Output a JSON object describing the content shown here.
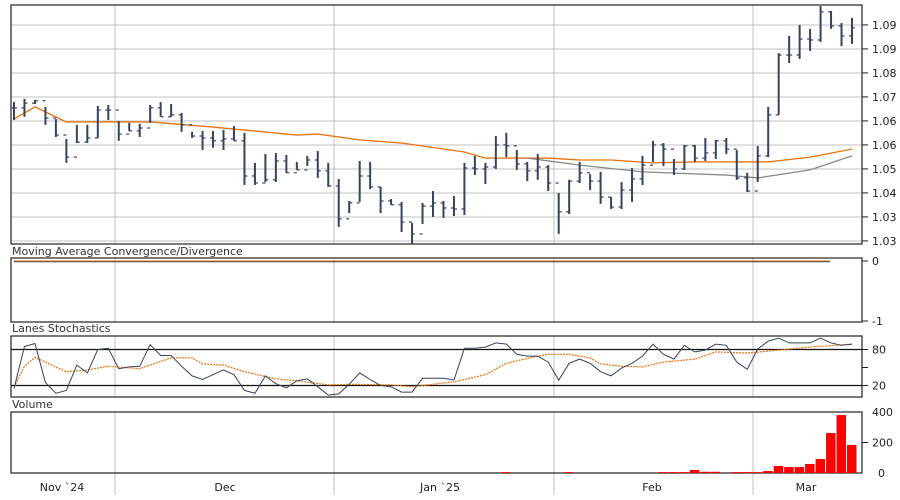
{
  "chart_data": [
    {
      "type": "ohlc",
      "panel": "price",
      "y_ticks": [
        {
          "value": 1.095,
          "label": "1.09"
        },
        {
          "value": 1.0875,
          "label": "1.09"
        },
        {
          "value": 1.08,
          "label": "1.08"
        },
        {
          "value": 1.0725,
          "label": "1.07"
        },
        {
          "value": 1.065,
          "label": "1.06"
        },
        {
          "value": 1.0575,
          "label": "1.06"
        },
        {
          "value": 1.05,
          "label": "1.05"
        },
        {
          "value": 1.0425,
          "label": "1.04"
        },
        {
          "value": 1.035,
          "label": "1.03"
        },
        {
          "value": 1.0275,
          "label": "1.03"
        }
      ],
      "ylim": [
        1.0266,
        1.1013
      ],
      "grid": true,
      "bars_hlc": [
        [
          1.0709,
          1.0653,
          1.0691
        ],
        [
          1.0719,
          1.0663,
          1.0706
        ],
        [
          1.0716,
          1.0703,
          1.0713
        ],
        [
          1.0694,
          1.0638,
          1.0659
        ],
        [
          1.0656,
          1.06,
          1.0606
        ],
        [
          1.0594,
          1.0519,
          1.0537
        ],
        [
          1.0638,
          1.0581,
          1.0584
        ],
        [
          1.0638,
          1.0581,
          1.0597
        ],
        [
          1.0697,
          1.0597,
          1.0684
        ],
        [
          1.07,
          1.0653,
          1.0684
        ],
        [
          1.065,
          1.0588,
          1.0609
        ],
        [
          1.0644,
          1.0619,
          1.0619
        ],
        [
          1.0641,
          1.06,
          1.0628
        ],
        [
          1.07,
          1.0644,
          1.0691
        ],
        [
          1.0709,
          1.0663,
          1.0663
        ],
        [
          1.0703,
          1.0663,
          1.0669
        ],
        [
          1.0675,
          1.0616,
          1.0638
        ],
        [
          1.0616,
          1.0597,
          1.0603
        ],
        [
          1.0619,
          1.0559,
          1.0597
        ],
        [
          1.0619,
          1.0566,
          1.0588
        ],
        [
          1.0622,
          1.0559,
          1.0594
        ],
        [
          1.0634,
          1.0588,
          1.0588
        ],
        [
          1.0613,
          1.045,
          1.0478
        ],
        [
          1.0519,
          1.045,
          1.0456
        ],
        [
          1.0547,
          1.0459,
          1.0466
        ],
        [
          1.055,
          1.0459,
          1.0525
        ],
        [
          1.0544,
          1.0488,
          1.0488
        ],
        [
          1.0522,
          1.0497,
          1.0497
        ],
        [
          1.0541,
          1.0509,
          1.0528
        ],
        [
          1.0556,
          1.0472,
          1.0494
        ],
        [
          1.0519,
          1.0444,
          1.0447
        ],
        [
          1.0469,
          1.0319,
          1.0344
        ],
        [
          1.04,
          1.0362,
          1.0394
        ],
        [
          1.0525,
          1.0397,
          1.0478
        ],
        [
          1.0522,
          1.0437,
          1.0444
        ],
        [
          1.0444,
          1.0362,
          1.04
        ],
        [
          1.0406,
          1.0388,
          1.0388
        ],
        [
          1.0397,
          1.0303,
          1.0334
        ],
        [
          1.0331,
          1.0266,
          1.0297
        ],
        [
          1.0394,
          1.0328,
          1.0384
        ],
        [
          1.0431,
          1.035,
          1.0394
        ],
        [
          1.04,
          1.0347,
          1.0378
        ],
        [
          1.0416,
          1.0353,
          1.0375
        ],
        [
          1.0519,
          1.0356,
          1.0503
        ],
        [
          1.0541,
          1.0481,
          1.05
        ],
        [
          1.0519,
          1.0453,
          1.0506
        ],
        [
          1.0603,
          1.05,
          1.0575
        ],
        [
          1.0613,
          1.0537,
          1.0572
        ],
        [
          1.0559,
          1.0497,
          1.0516
        ],
        [
          1.0522,
          1.0462,
          1.0494
        ],
        [
          1.0547,
          1.0466,
          1.0506
        ],
        [
          1.0512,
          1.0431,
          1.0456
        ],
        [
          1.0425,
          1.0297,
          1.0366
        ],
        [
          1.0466,
          1.0359,
          1.0462
        ],
        [
          1.0522,
          1.0456,
          1.0488
        ],
        [
          1.0484,
          1.0434,
          1.0462
        ],
        [
          1.0491,
          1.0391,
          1.0412
        ],
        [
          1.0412,
          1.0375,
          1.0381
        ],
        [
          1.0459,
          1.0375,
          1.0434
        ],
        [
          1.0503,
          1.0397,
          1.0469
        ],
        [
          1.0541,
          1.045,
          1.0512
        ],
        [
          1.0588,
          1.0522,
          1.0575
        ],
        [
          1.0581,
          1.0509,
          1.0562
        ],
        [
          1.0531,
          1.0481,
          1.05
        ],
        [
          1.0575,
          1.0497,
          1.0572
        ],
        [
          1.0575,
          1.0522,
          1.0534
        ],
        [
          1.0597,
          1.0525,
          1.055
        ],
        [
          1.0591,
          1.0531,
          1.0588
        ],
        [
          1.0597,
          1.0547,
          1.0562
        ],
        [
          1.0559,
          1.0466,
          1.0472
        ],
        [
          1.0488,
          1.0428,
          1.0431
        ],
        [
          1.0572,
          1.0459,
          1.0541
        ],
        [
          1.0694,
          1.0537,
          1.0669
        ],
        [
          1.0862,
          1.0669,
          1.0856
        ],
        [
          1.0916,
          1.0831,
          1.0856
        ],
        [
          1.095,
          1.0844,
          1.0906
        ],
        [
          1.0938,
          1.0869,
          1.0903
        ],
        [
          1.1009,
          1.0897,
          1.0991
        ],
        [
          1.0994,
          1.0938,
          1.0947
        ],
        [
          1.0956,
          1.0884,
          1.0916
        ],
        [
          1.0972,
          1.0891,
          1.0941
        ]
      ],
      "moving_averages": [
        {
          "color": "#e8730c",
          "points": [
            [
              1,
              1.0656
            ],
            [
              3,
              1.0694
            ],
            [
              6,
              1.0647
            ],
            [
              14,
              1.0647
            ],
            [
              20,
              1.0631
            ],
            [
              28,
              1.0606
            ],
            [
              30,
              1.0609
            ],
            [
              34,
              1.0591
            ],
            [
              38,
              1.0581
            ],
            [
              44,
              1.0553
            ],
            [
              46,
              1.0534
            ],
            [
              52,
              1.0534
            ],
            [
              55,
              1.0528
            ],
            [
              58,
              1.0528
            ],
            [
              62,
              1.0519
            ],
            [
              66,
              1.0522
            ],
            [
              73,
              1.0522
            ],
            [
              77,
              1.0537
            ],
            [
              81,
              1.0562
            ]
          ]
        },
        {
          "color": "#888888",
          "points": [
            [
              50,
              1.0534
            ],
            [
              55,
              1.0512
            ],
            [
              61,
              1.0491
            ],
            [
              69,
              1.0481
            ],
            [
              72,
              1.0472
            ],
            [
              77,
              1.0497
            ],
            [
              81,
              1.0541
            ]
          ]
        }
      ],
      "bar_color": "#36435e"
    },
    {
      "type": "line",
      "panel": "macd",
      "title": "Moving Average Convergence/Divergence",
      "y_ticks": [
        {
          "value": 0,
          "label": "0"
        },
        {
          "value": -1,
          "label": "-1"
        }
      ],
      "ylim": [
        -1,
        0
      ],
      "series_level": 0
    },
    {
      "type": "line",
      "panel": "stochastics",
      "title": "Lanes Stochastics",
      "y_ticks": [
        {
          "value": 80,
          "label": "80"
        },
        {
          "value": 20,
          "label": "20"
        }
      ],
      "ylim": [
        0,
        100
      ],
      "k": [
        15,
        85,
        90,
        25,
        7,
        12,
        54,
        41,
        80,
        82,
        48,
        51,
        52,
        88,
        70,
        70,
        52,
        36,
        30,
        38,
        46,
        38,
        12,
        7,
        36,
        23,
        16,
        28,
        31,
        18,
        4,
        6,
        22,
        41,
        30,
        20,
        18,
        9,
        9,
        32,
        32,
        32,
        29,
        82,
        82,
        84,
        91,
        89,
        72,
        69,
        69,
        59,
        29,
        57,
        64,
        57,
        43,
        36,
        49,
        57,
        69,
        89,
        72,
        64,
        87,
        76,
        79,
        89,
        87,
        59,
        47,
        81,
        94,
        99,
        91,
        91,
        91,
        99,
        91,
        87,
        89
      ],
      "d_points": [
        [
          1,
          18
        ],
        [
          2,
          52
        ],
        [
          3,
          67
        ],
        [
          6,
          43
        ],
        [
          8,
          46
        ],
        [
          10,
          52
        ],
        [
          13,
          48
        ],
        [
          16,
          66
        ],
        [
          18,
          66
        ],
        [
          19,
          56
        ],
        [
          21,
          54
        ],
        [
          23,
          43
        ],
        [
          26,
          31
        ],
        [
          28,
          28
        ],
        [
          31,
          21
        ],
        [
          33,
          22
        ],
        [
          37,
          21
        ],
        [
          39,
          18
        ],
        [
          41,
          22
        ],
        [
          43,
          26
        ],
        [
          46,
          38
        ],
        [
          48,
          57
        ],
        [
          51,
          69
        ],
        [
          52,
          72
        ],
        [
          54,
          72
        ],
        [
          56,
          66
        ],
        [
          57,
          56
        ],
        [
          59,
          52
        ],
        [
          61,
          51
        ],
        [
          63,
          59
        ],
        [
          66,
          64
        ],
        [
          68,
          76
        ],
        [
          71,
          74
        ],
        [
          74,
          79
        ],
        [
          77,
          84
        ],
        [
          81,
          89
        ]
      ],
      "k_color": "#36435e",
      "d_color": "#e8730c"
    },
    {
      "type": "bar",
      "panel": "volume",
      "title": "Volume",
      "y_ticks": [
        {
          "value": 400,
          "label": "400"
        },
        {
          "value": 200,
          "label": "200"
        },
        {
          "value": 0,
          "label": "0"
        }
      ],
      "ylim": [
        0,
        410
      ],
      "bars": [
        [
          48,
          6
        ],
        [
          54,
          6
        ],
        [
          63,
          6
        ],
        [
          64,
          6
        ],
        [
          65,
          6
        ],
        [
          66,
          20
        ],
        [
          67,
          8
        ],
        [
          68,
          8
        ],
        [
          70,
          6
        ],
        [
          71,
          6
        ],
        [
          72,
          6
        ],
        [
          73,
          13
        ],
        [
          74,
          46
        ],
        [
          75,
          39
        ],
        [
          76,
          39
        ],
        [
          77,
          59
        ],
        [
          78,
          92
        ],
        [
          79,
          262
        ],
        [
          80,
          380
        ],
        [
          81,
          184
        ]
      ],
      "color": "#ff0000"
    }
  ],
  "x_axis": {
    "labels": [
      "Nov `24",
      "Dec",
      "Jan `25",
      "Feb",
      "Mar"
    ]
  }
}
